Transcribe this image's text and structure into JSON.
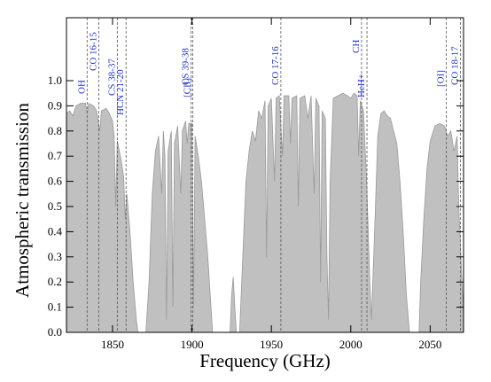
{
  "chart_data": {
    "type": "area",
    "x_label": "Frequency (GHz)",
    "y_label": "Atmospheric transmission",
    "color": "#c0c0c0",
    "xlim": [
      1821,
      2071
    ],
    "ylim": [
      0,
      1.25
    ],
    "xticks": [
      1850,
      1900,
      1950,
      2000,
      2050
    ],
    "yticks": [
      {
        "value": 0,
        "label": "0.0"
      },
      0.1,
      0.2,
      0.3,
      0.4,
      0.5,
      0.6,
      0.7,
      0.8,
      0.9,
      {
        "value": 1,
        "label": "1.0"
      }
    ],
    "x": [
      1821,
      1823,
      1825,
      1827,
      1830,
      1833,
      1834,
      1835,
      1838,
      1840,
      1842,
      1843,
      1846,
      1848,
      1850,
      1851,
      1852,
      1853,
      1855,
      1857,
      1858,
      1859,
      1861,
      1863,
      1865,
      1866,
      1871,
      1873,
      1875,
      1877,
      1879,
      1881,
      1882,
      1883,
      1884,
      1885,
      1887,
      1888,
      1889,
      1891,
      1893,
      1894,
      1896,
      1897,
      1898,
      1900,
      1901,
      1902,
      1904,
      1906,
      1908,
      1910,
      1912,
      1913,
      1924,
      1925,
      1926,
      1927,
      1928,
      1930,
      1932,
      1934,
      1936,
      1938,
      1940,
      1942,
      1944,
      1946,
      1947,
      1948,
      1950,
      1952,
      1953,
      1955,
      1957,
      1958,
      1961,
      1962,
      1963,
      1966,
      1967,
      1968,
      1971,
      1973,
      1975,
      1977,
      1978,
      1980,
      1981,
      1982,
      1984,
      1985,
      1986,
      1987,
      1989,
      1992,
      1995,
      1998,
      2000,
      2002,
      2004,
      2005,
      2006,
      2008,
      2010,
      2012,
      2013,
      2015,
      2017,
      2019,
      2021,
      2023,
      2025,
      2027,
      2029,
      2031,
      2033,
      2035,
      2037,
      2043,
      2044,
      2046,
      2048,
      2050,
      2053,
      2056,
      2059,
      2061,
      2063,
      2065,
      2067,
      2068,
      2069,
      2070,
      2071
    ],
    "values": [
      0.87,
      0.88,
      0.86,
      0.9,
      0.91,
      0.91,
      0.87,
      0.91,
      0.9,
      0.88,
      0.8,
      0.88,
      0.89,
      0.87,
      0.84,
      0.78,
      0.5,
      0.76,
      0.7,
      0.62,
      0.45,
      0.55,
      0.4,
      0.2,
      0.05,
      0,
      0,
      0.2,
      0.55,
      0.72,
      0.78,
      0.55,
      0.8,
      0.7,
      0.05,
      0.72,
      0.8,
      0.1,
      0.75,
      0.82,
      0.55,
      0.8,
      0.84,
      0.75,
      0.83,
      0.83,
      0.1,
      0.78,
      0.7,
      0.6,
      0.45,
      0.3,
      0.1,
      0,
      0,
      0.15,
      0.22,
      0.1,
      0,
      0,
      0.3,
      0.6,
      0.72,
      0.8,
      0.76,
      0.88,
      0.85,
      0.92,
      0.3,
      0.9,
      0.93,
      0.6,
      0.93,
      0.94,
      0.7,
      0.94,
      0.94,
      0.75,
      0.93,
      0.94,
      0.5,
      0.93,
      0.94,
      0.85,
      0.94,
      0.55,
      0.93,
      0.9,
      0.2,
      0.88,
      0.85,
      0.3,
      0.05,
      0.6,
      0.93,
      0.94,
      0.95,
      0.94,
      0.93,
      0.95,
      0.94,
      0.7,
      0.92,
      0.88,
      0.6,
      0.2,
      0.05,
      0.4,
      0.78,
      0.87,
      0.88,
      0.86,
      0.85,
      0.8,
      0.75,
      0.6,
      0.4,
      0.15,
      0,
      0,
      0.2,
      0.45,
      0.65,
      0.76,
      0.82,
      0.83,
      0.82,
      0.78,
      0.8,
      0.72,
      0.78,
      0.5,
      0.35,
      0.2,
      0.08
    ],
    "annotations": [
      {
        "label": "OH",
        "x": 1834
      },
      {
        "label": "CO 16-15",
        "x": 1841.3
      },
      {
        "label": "CS 38-37",
        "x": 1853
      },
      {
        "label": "HCN 21-20",
        "x": 1858.5
      },
      {
        "label": "CS 39-38",
        "x": 1899.5
      },
      {
        "label": "[CII]",
        "x": 1900.5
      },
      {
        "label": "CO 17-16",
        "x": 1956
      },
      {
        "label": "CH",
        "x": 2006.8
      },
      {
        "label": "HeH+",
        "x": 2010.2
      },
      {
        "label": "[OI]",
        "x": 2060.1
      },
      {
        "label": "CO 18-17",
        "x": 2069
      }
    ]
  }
}
